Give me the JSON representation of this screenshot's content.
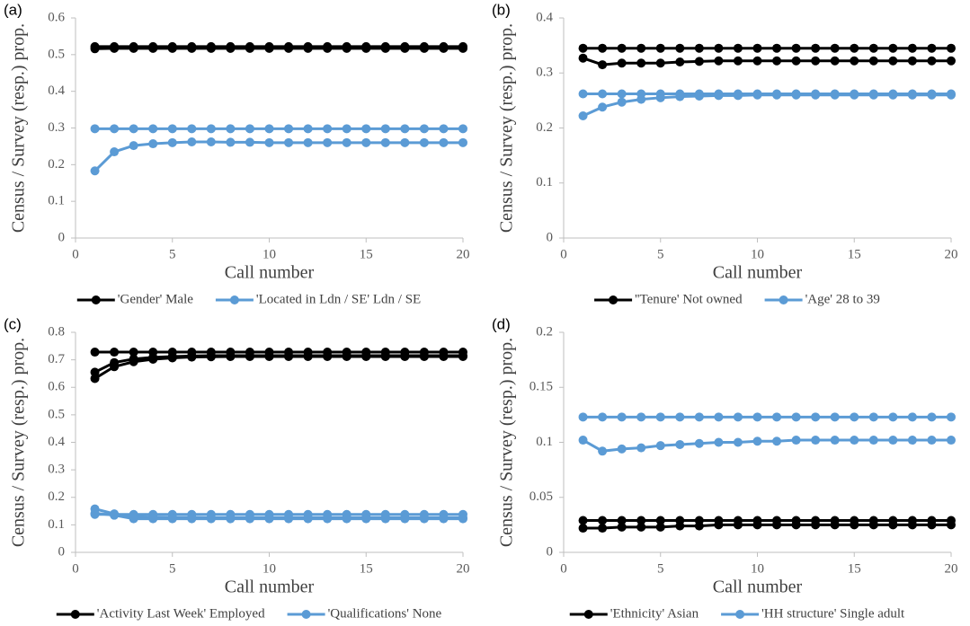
{
  "chart_data": [
    {
      "type": "line",
      "label": "(a)",
      "x_label": "Call number",
      "y_label": "Census / Survey (resp.) prop.",
      "x": [
        1,
        2,
        3,
        4,
        5,
        6,
        7,
        8,
        9,
        10,
        11,
        12,
        13,
        14,
        15,
        16,
        17,
        18,
        19,
        20
      ],
      "xlim": [
        0,
        20
      ],
      "xticks": [
        0,
        5,
        10,
        15,
        20
      ],
      "ylim": [
        0,
        0.6
      ],
      "yticks": [
        0,
        0.1,
        0.2,
        0.3,
        0.4,
        0.5,
        0.6
      ],
      "series": [
        {
          "name": "'Gender' Male",
          "color": "#000000",
          "values": [
            0.522,
            0.522,
            0.522,
            0.522,
            0.522,
            0.522,
            0.522,
            0.522,
            0.522,
            0.522,
            0.522,
            0.522,
            0.522,
            0.522,
            0.522,
            0.522,
            0.522,
            0.522,
            0.522,
            0.522
          ]
        },
        {
          "color": "#000000",
          "values": [
            0.516,
            0.517,
            0.517,
            0.517,
            0.517,
            0.517,
            0.517,
            0.517,
            0.517,
            0.517,
            0.517,
            0.517,
            0.517,
            0.517,
            0.517,
            0.517,
            0.517,
            0.517,
            0.517,
            0.517
          ]
        },
        {
          "name": "'Located in Ldn / SE' Ldn / SE",
          "color": "#5b9bd5",
          "values": [
            0.298,
            0.298,
            0.298,
            0.298,
            0.298,
            0.298,
            0.298,
            0.298,
            0.298,
            0.298,
            0.298,
            0.298,
            0.298,
            0.298,
            0.298,
            0.298,
            0.298,
            0.298,
            0.298,
            0.298
          ]
        },
        {
          "color": "#5b9bd5",
          "values": [
            0.183,
            0.235,
            0.252,
            0.257,
            0.26,
            0.262,
            0.262,
            0.261,
            0.261,
            0.26,
            0.26,
            0.26,
            0.26,
            0.26,
            0.26,
            0.26,
            0.26,
            0.26,
            0.26,
            0.26
          ]
        }
      ]
    },
    {
      "type": "line",
      "label": "(b)",
      "x_label": "Call number",
      "y_label": "Census / Survey (resp.) prop.",
      "x": [
        1,
        2,
        3,
        4,
        5,
        6,
        7,
        8,
        9,
        10,
        11,
        12,
        13,
        14,
        15,
        16,
        17,
        18,
        19,
        20
      ],
      "xlim": [
        0,
        20
      ],
      "xticks": [
        0,
        5,
        10,
        15,
        20
      ],
      "ylim": [
        0,
        0.4
      ],
      "yticks": [
        0,
        0.1,
        0.2,
        0.3,
        0.4
      ],
      "series": [
        {
          "name": "''Tenure' Not owned",
          "color": "#000000",
          "values": [
            0.345,
            0.345,
            0.345,
            0.345,
            0.345,
            0.345,
            0.345,
            0.345,
            0.345,
            0.345,
            0.345,
            0.345,
            0.345,
            0.345,
            0.345,
            0.345,
            0.345,
            0.345,
            0.345,
            0.345
          ]
        },
        {
          "color": "#000000",
          "values": [
            0.327,
            0.315,
            0.318,
            0.318,
            0.318,
            0.32,
            0.321,
            0.322,
            0.322,
            0.322,
            0.322,
            0.322,
            0.322,
            0.322,
            0.322,
            0.322,
            0.322,
            0.322,
            0.322,
            0.322
          ]
        },
        {
          "name": "'Age' 28 to 39",
          "color": "#5b9bd5",
          "values": [
            0.262,
            0.262,
            0.262,
            0.262,
            0.262,
            0.262,
            0.262,
            0.262,
            0.262,
            0.262,
            0.262,
            0.262,
            0.262,
            0.262,
            0.262,
            0.262,
            0.262,
            0.262,
            0.262,
            0.262
          ]
        },
        {
          "color": "#5b9bd5",
          "values": [
            0.222,
            0.238,
            0.247,
            0.252,
            0.255,
            0.257,
            0.258,
            0.259,
            0.259,
            0.26,
            0.26,
            0.26,
            0.26,
            0.26,
            0.26,
            0.26,
            0.26,
            0.26,
            0.26,
            0.26
          ]
        }
      ]
    },
    {
      "type": "line",
      "label": "(c)",
      "x_label": "Call number",
      "y_label": "Census / Survey (resp.) prop.",
      "x": [
        1,
        2,
        3,
        4,
        5,
        6,
        7,
        8,
        9,
        10,
        11,
        12,
        13,
        14,
        15,
        16,
        17,
        18,
        19,
        20
      ],
      "xlim": [
        0,
        20
      ],
      "xticks": [
        0,
        5,
        10,
        15,
        20
      ],
      "ylim": [
        0,
        0.8
      ],
      "yticks": [
        0,
        0.1,
        0.2,
        0.3,
        0.4,
        0.5,
        0.6,
        0.7,
        0.8
      ],
      "series": [
        {
          "name": "'Activity Last Week' Employed",
          "color": "#000000",
          "values": [
            0.728,
            0.728,
            0.728,
            0.728,
            0.728,
            0.728,
            0.728,
            0.728,
            0.728,
            0.728,
            0.728,
            0.728,
            0.728,
            0.728,
            0.728,
            0.728,
            0.728,
            0.728,
            0.728,
            0.728
          ]
        },
        {
          "color": "#000000",
          "values": [
            0.632,
            0.675,
            0.693,
            0.702,
            0.707,
            0.71,
            0.711,
            0.712,
            0.712,
            0.712,
            0.712,
            0.712,
            0.712,
            0.712,
            0.712,
            0.712,
            0.712,
            0.712,
            0.712,
            0.712
          ]
        },
        {
          "color": "#000000",
          "values": [
            0.655,
            0.69,
            0.703,
            0.709,
            0.712,
            0.714,
            0.715,
            0.715,
            0.715,
            0.715,
            0.715,
            0.715,
            0.715,
            0.715,
            0.715,
            0.715,
            0.715,
            0.715,
            0.715,
            0.715
          ]
        },
        {
          "name": "'Qualifications' None",
          "color": "#5b9bd5",
          "values": [
            0.138,
            0.138,
            0.138,
            0.138,
            0.138,
            0.138,
            0.138,
            0.138,
            0.138,
            0.138,
            0.138,
            0.138,
            0.138,
            0.138,
            0.138,
            0.138,
            0.138,
            0.138,
            0.138,
            0.138
          ]
        },
        {
          "color": "#5b9bd5",
          "values": [
            0.158,
            0.14,
            0.13,
            0.128,
            0.127,
            0.127,
            0.126,
            0.126,
            0.126,
            0.126,
            0.126,
            0.126,
            0.126,
            0.126,
            0.126,
            0.126,
            0.126,
            0.126,
            0.126,
            0.126
          ]
        },
        {
          "color": "#5b9bd5",
          "values": [
            0.142,
            0.135,
            0.122,
            0.122,
            0.122,
            0.122,
            0.122,
            0.122,
            0.122,
            0.122,
            0.122,
            0.122,
            0.122,
            0.122,
            0.122,
            0.122,
            0.122,
            0.122,
            0.122,
            0.122
          ]
        }
      ]
    },
    {
      "type": "line",
      "label": "(d)",
      "x_label": "Call number",
      "y_label": "Census / Survey (resp.) prop.",
      "x": [
        1,
        2,
        3,
        4,
        5,
        6,
        7,
        8,
        9,
        10,
        11,
        12,
        13,
        14,
        15,
        16,
        17,
        18,
        19,
        20
      ],
      "xlim": [
        0,
        20
      ],
      "xticks": [
        0,
        5,
        10,
        15,
        20
      ],
      "ylim": [
        0,
        0.2
      ],
      "yticks": [
        0,
        0.05,
        0.1,
        0.15,
        0.2
      ],
      "series": [
        {
          "name": "'Ethnicity' Asian",
          "color": "#000000",
          "values": [
            0.029,
            0.029,
            0.029,
            0.029,
            0.029,
            0.029,
            0.029,
            0.029,
            0.029,
            0.029,
            0.029,
            0.029,
            0.029,
            0.029,
            0.029,
            0.029,
            0.029,
            0.029,
            0.029,
            0.029
          ]
        },
        {
          "color": "#000000",
          "values": [
            0.022,
            0.022,
            0.023,
            0.023,
            0.023,
            0.024,
            0.024,
            0.025,
            0.025,
            0.025,
            0.025,
            0.025,
            0.025,
            0.025,
            0.025,
            0.025,
            0.025,
            0.025,
            0.025,
            0.025
          ]
        },
        {
          "name": "'HH structure' Single adult",
          "color": "#5b9bd5",
          "values": [
            0.123,
            0.123,
            0.123,
            0.123,
            0.123,
            0.123,
            0.123,
            0.123,
            0.123,
            0.123,
            0.123,
            0.123,
            0.123,
            0.123,
            0.123,
            0.123,
            0.123,
            0.123,
            0.123,
            0.123
          ]
        },
        {
          "color": "#5b9bd5",
          "values": [
            0.102,
            0.092,
            0.094,
            0.095,
            0.097,
            0.098,
            0.099,
            0.1,
            0.1,
            0.101,
            0.101,
            0.102,
            0.102,
            0.102,
            0.102,
            0.102,
            0.102,
            0.102,
            0.102,
            0.102
          ]
        }
      ]
    }
  ]
}
